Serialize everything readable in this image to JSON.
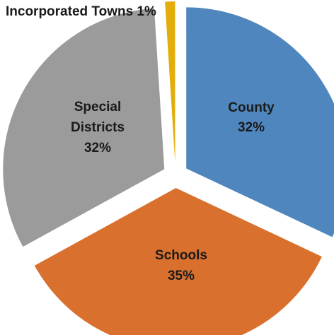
{
  "chart_data": {
    "type": "pie",
    "exploded": true,
    "legend": "none",
    "slices": [
      {
        "name": "County",
        "value": 32,
        "value_label": "32%",
        "label_lines": [
          "County",
          "32%"
        ],
        "color": "#4f86be"
      },
      {
        "name": "Schools",
        "value": 35,
        "value_label": "35%",
        "label_lines": [
          "Schools",
          "35%"
        ],
        "color": "#d9702e"
      },
      {
        "name": "Special Districts",
        "value": 32,
        "value_label": "32%",
        "label_lines": [
          "Special",
          "Districts",
          "32%"
        ],
        "color": "#9b9b9b"
      },
      {
        "name": "Incorporated Towns",
        "value": 1,
        "value_label": "1%",
        "label_lines": [
          "Incorporated Towns 1%"
        ],
        "color": "#e3ad0a"
      }
    ]
  }
}
